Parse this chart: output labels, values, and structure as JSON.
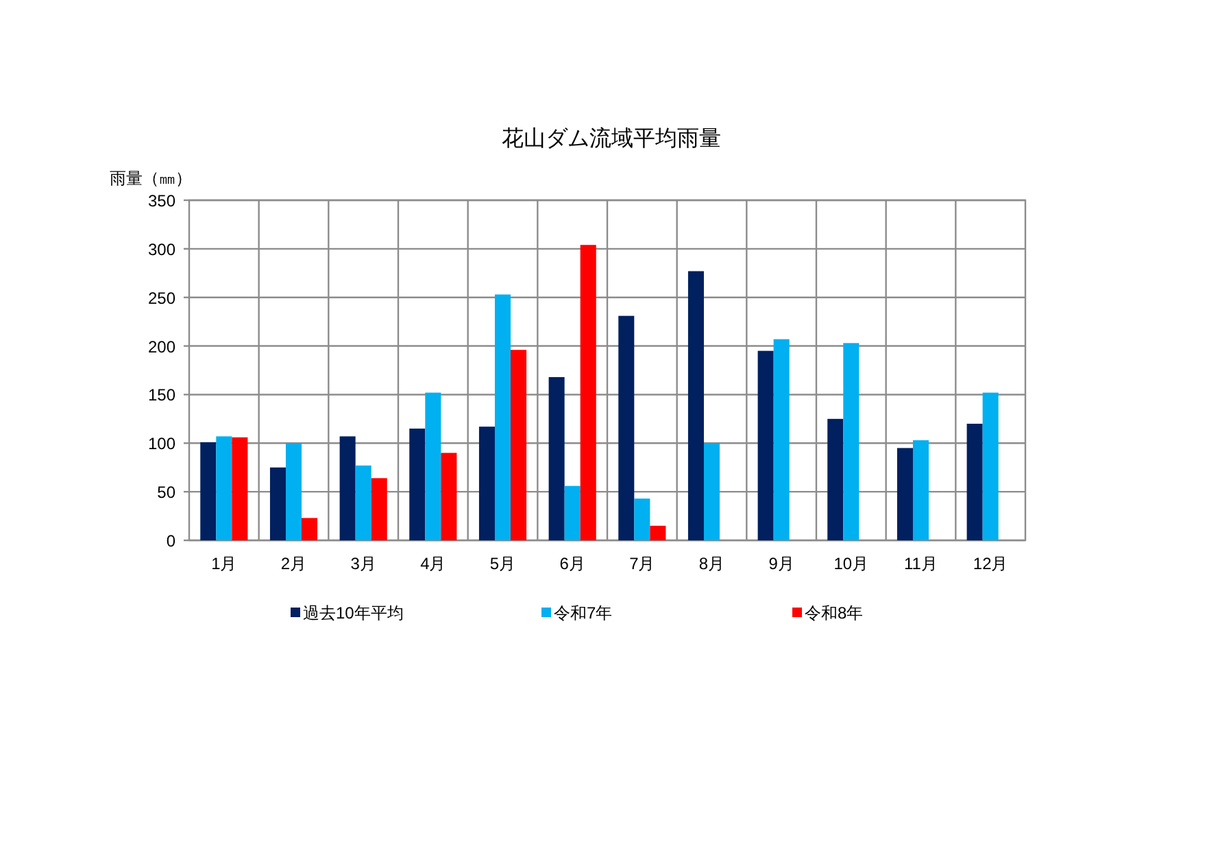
{
  "chart_data": {
    "type": "bar",
    "title": "花山ダム流域平均雨量",
    "ylabel": "雨量（㎜）",
    "categories": [
      "1月",
      "2月",
      "3月",
      "4月",
      "5月",
      "6月",
      "7月",
      "8月",
      "9月",
      "10月",
      "11月",
      "12月"
    ],
    "series": [
      {
        "name": "過去10年平均",
        "color": "#002060",
        "values": [
          101,
          75,
          107,
          115,
          117,
          168,
          231,
          277,
          195,
          125,
          95,
          120
        ]
      },
      {
        "name": "令和7年",
        "color": "#00b0f0",
        "values": [
          107,
          100,
          77,
          152,
          253,
          56,
          43,
          100,
          207,
          203,
          103,
          152
        ]
      },
      {
        "name": "令和8年",
        "color": "#ff0000",
        "values": [
          106,
          23,
          64,
          90,
          196,
          304,
          15,
          null,
          null,
          null,
          null,
          null
        ]
      }
    ],
    "ylim": [
      0,
      350
    ],
    "yticks": [
      0,
      50,
      100,
      150,
      200,
      250,
      300,
      350
    ],
    "grid": true,
    "legend": "bottom"
  }
}
